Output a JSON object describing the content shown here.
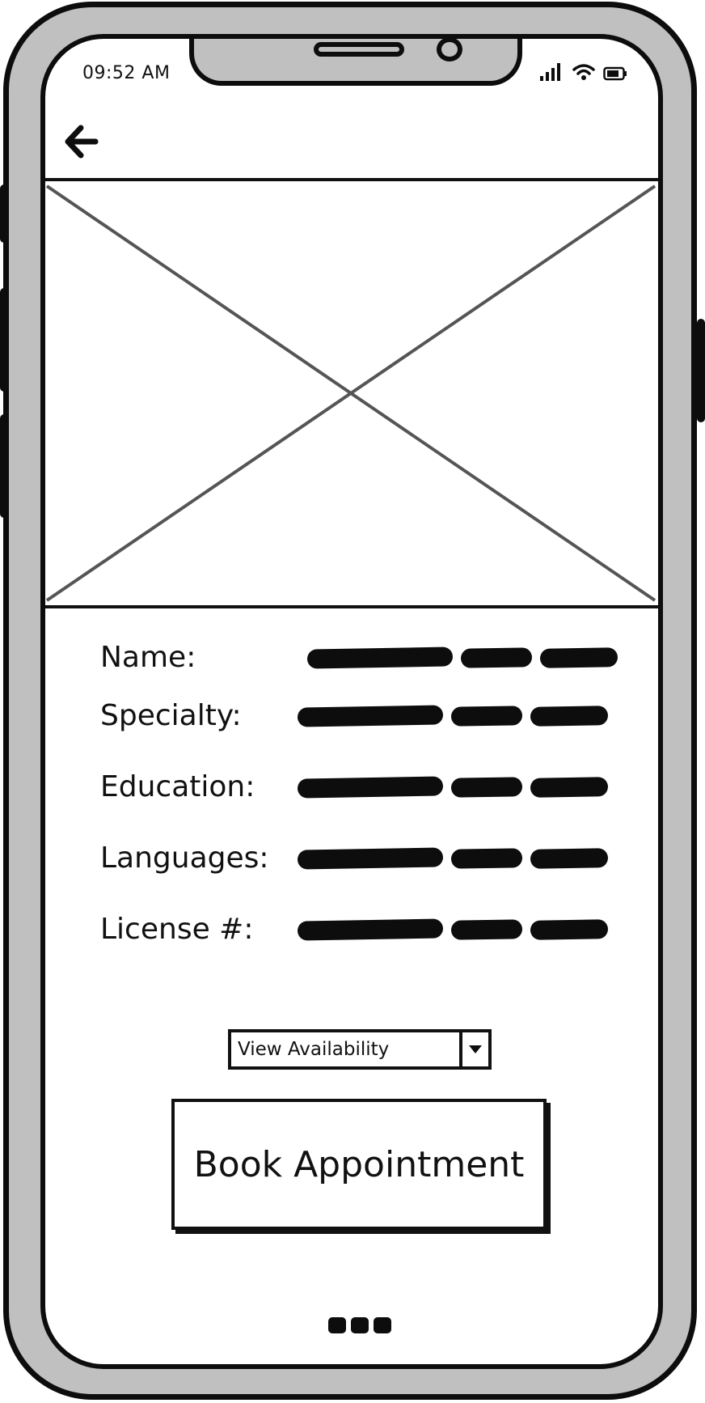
{
  "status_bar": {
    "time": "09:52 AM",
    "icons": [
      "signal-icon",
      "wifi-icon",
      "battery-icon"
    ]
  },
  "nav": {
    "back_icon": "arrow-left-icon"
  },
  "image_placeholder": {
    "kind": "image-placeholder"
  },
  "details": [
    {
      "label": "Name:"
    },
    {
      "label": "Specialty:"
    },
    {
      "label": "Education:"
    },
    {
      "label": "Languages:"
    },
    {
      "label": "License #:"
    }
  ],
  "availability": {
    "label": "View Availability",
    "arrow_icon": "caret-down-icon"
  },
  "book_button": {
    "label": "Book Appointment"
  },
  "colors": {
    "frame": "#c0c0c0",
    "ink": "#0d0d0d",
    "screen": "#ffffff",
    "placeholder_cross": "#555555"
  }
}
